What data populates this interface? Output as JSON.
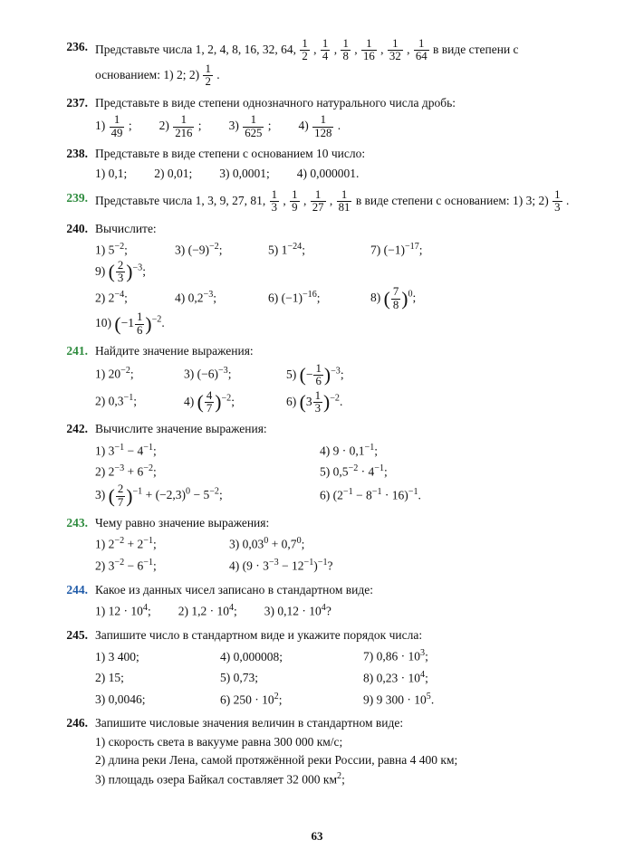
{
  "pageNumber": "63",
  "problems": [
    {
      "num": "236.",
      "color": "black",
      "text": "Представьте числа 1, 2, 4, 8, 16, 32, 64, <span class=\"frac\"><span class=\"num\">1</span><span class=\"den\">2</span></span> , <span class=\"frac\"><span class=\"num\">1</span><span class=\"den\">4</span></span> , <span class=\"frac\"><span class=\"num\">1</span><span class=\"den\">8</span></span> , <span class=\"frac\"><span class=\"num\">1</span><span class=\"den\">16</span></span> , <span class=\"frac\"><span class=\"num\">1</span><span class=\"den\">32</span></span> , <span class=\"frac\"><span class=\"num\">1</span><span class=\"den\">64</span></span>  в виде степени с основанием: 1) 2; 2) <span class=\"frac\"><span class=\"num\">1</span><span class=\"den\">2</span></span> ."
    },
    {
      "num": "237.",
      "color": "black",
      "text": "Представьте в виде степени однозначного натурального числа дробь:",
      "items": [
        "1) <span class=\"frac\"><span class=\"num\">1</span><span class=\"den\">49</span></span> ;",
        "2) <span class=\"frac\"><span class=\"num\">1</span><span class=\"den\">216</span></span> ;",
        "3) <span class=\"frac\"><span class=\"num\">1</span><span class=\"den\">625</span></span> ;",
        "4) <span class=\"frac\"><span class=\"num\">1</span><span class=\"den\">128</span></span> ."
      ],
      "itemClass": "wide"
    },
    {
      "num": "238.",
      "color": "black",
      "text": "Представьте в виде степени с основанием 10 число:",
      "items": [
        "1) 0,1;",
        "2) 0,01;",
        "3) 0,0001;",
        "4) 0,000001."
      ],
      "itemClass": "wide"
    },
    {
      "num": "239.",
      "color": "green",
      "text": "Представьте числа 1, 3, 9, 27, 81, <span class=\"frac\"><span class=\"num\">1</span><span class=\"den\">3</span></span> , <span class=\"frac\"><span class=\"num\">1</span><span class=\"den\">9</span></span> , <span class=\"frac\"><span class=\"num\">1</span><span class=\"den\">27</span></span> , <span class=\"frac\"><span class=\"num\">1</span><span class=\"den\">81</span></span>  в виде степени с основанием: 1) 3; 2) <span class=\"frac\"><span class=\"num\">1</span><span class=\"den\">3</span></span> ."
    },
    {
      "num": "240.",
      "color": "black",
      "text": "Вычислите:",
      "rows": [
        [
          "1) 5<sup>−2</sup>;",
          "3) (−9)<sup>−2</sup>;",
          "5) 1<sup>−24</sup>;",
          "7) (−1)<sup>−17</sup>;",
          "9) <span class=\"lparen\">(</span><span class=\"frac\"><span class=\"num\">2</span><span class=\"den\">3</span></span><span class=\"rparen\">)</span><sup>−3</sup>;"
        ],
        [
          "2) 2<sup>−4</sup>;",
          "4) 0,2<sup>−3</sup>;",
          "6) (−1)<sup>−16</sup>;",
          "8) <span class=\"lparen\">(</span><span class=\"frac\"><span class=\"num\">7</span><span class=\"den\">8</span></span><span class=\"rparen\">)</span><sup>0</sup>;",
          "10) <span class=\"lparen\">(</span>−1<span class=\"frac\"><span class=\"num\">1</span><span class=\"den\">6</span></span><span class=\"rparen\">)</span><sup>−2</sup>."
        ]
      ],
      "widths": [
        70,
        85,
        95,
        100,
        110
      ]
    },
    {
      "num": "241.",
      "color": "green",
      "text": "Найдите значение выражения:",
      "rows": [
        [
          "1) 20<sup>−2</sup>;",
          "3) (−6)<sup>−3</sup>;",
          "5) <span class=\"lparen\">(</span>−<span class=\"frac\"><span class=\"num\">1</span><span class=\"den\">6</span></span><span class=\"rparen\">)</span><sup>−3</sup>;"
        ],
        [
          "2) 0,3<sup>−1</sup>;",
          "4) <span class=\"lparen\">(</span><span class=\"frac\"><span class=\"num\">4</span><span class=\"den\">7</span></span><span class=\"rparen\">)</span><sup>−2</sup>;",
          "6) <span class=\"lparen\">(</span>3<span class=\"frac\"><span class=\"num\">1</span><span class=\"den\">3</span></span><span class=\"rparen\">)</span><sup>−2</sup>."
        ]
      ],
      "widths": [
        80,
        95,
        140
      ]
    },
    {
      "num": "242.",
      "color": "black",
      "text": "Вычислите значение выражения:",
      "rows": [
        [
          "1) 3<sup>−1</sup> − 4<sup>−1</sup>;",
          "4) 9 · 0,1<sup>−1</sup>;"
        ],
        [
          "2) 2<sup>−3</sup> + 6<sup>−2</sup>;",
          "5) 0,5<sup>−2</sup> · 4<sup>−1</sup>;"
        ],
        [
          "3) <span class=\"lparen\">(</span><span class=\"frac\"><span class=\"num\">2</span><span class=\"den\">7</span></span><span class=\"rparen\">)</span><sup>−1</sup> + (−2,3)<sup>0</sup> − 5<sup>−2</sup>;",
          "6) (2<sup>−1</sup> − 8<sup>−1</sup> · 16)<sup>−1</sup>."
        ]
      ],
      "widths": [
        230,
        200
      ]
    },
    {
      "num": "243.",
      "color": "green",
      "text": "Чему равно значение выражения:",
      "rows": [
        [
          "1) 2<sup>−2</sup> + 2<sup>−1</sup>;",
          "3) 0,03<sup>0</sup> + 0,7<sup>0</sup>;"
        ],
        [
          "2) 3<sup>−2</sup> − 6<sup>−1</sup>;",
          "4) (9 · 3<sup>−3</sup> − 12<sup>−1</sup>)<sup>−1</sup>?"
        ]
      ],
      "widths": [
        130,
        200
      ]
    },
    {
      "num": "244.",
      "color": "blue",
      "text": "Какое из данных чисел записано в стандартном виде:",
      "items": [
        "1) 12 · 10<sup>4</sup>;",
        "2) 1,2 · 10<sup>4</sup>;",
        "3) 0,12 · 10<sup>4</sup>?"
      ],
      "itemClass": "wide"
    },
    {
      "num": "245.",
      "color": "black",
      "text": "Запишите число в стандартном виде и укажите порядок числа:",
      "rows": [
        [
          "1) 3 400;",
          "4) 0,000008;",
          "7) 0,86 · 10<sup>3</sup>;"
        ],
        [
          "2) 15;",
          "5) 0,73;",
          "8) 0,23 · 10<sup>4</sup>;"
        ],
        [
          "3) 0,0046;",
          "6) 250 · 10<sup>2</sup>;",
          "9) 9 300 · 10<sup>5</sup>."
        ]
      ],
      "widths": [
        120,
        140,
        150
      ]
    },
    {
      "num": "246.",
      "color": "black",
      "text": "Запишите числовые значения величин в стандартном виде:",
      "lines": [
        "1) скорость света в вакууме равна 300 000 км/с;",
        "2) длина реки Лена, самой протяжённой реки России, равна 4 400 км;",
        "3) площадь озера Байкал составляет 32 000 км<sup>2</sup>;"
      ]
    }
  ]
}
